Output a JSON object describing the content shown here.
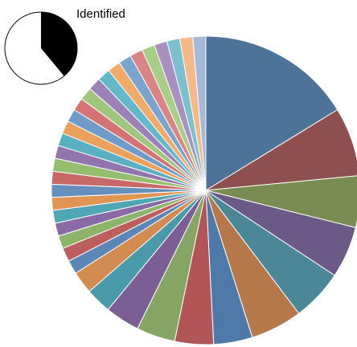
{
  "inset": {
    "label": "Identified",
    "fraction": 0.39,
    "fill_color": "#000000",
    "background_color": "#ffffff"
  },
  "chart_data": {
    "type": "pie",
    "start_angle_deg": 0,
    "direction": "clockwise",
    "slice_border": "#ffffff",
    "values": [
      18.0,
      8.0,
      6.0,
      6.0,
      6.0,
      6.0,
      4.5,
      4.5,
      4.5,
      4.0,
      3.0,
      2.6,
      1.6,
      1.6,
      1.5,
      1.5,
      1.5,
      1.5,
      1.5,
      1.5,
      1.5,
      1.5,
      1.5,
      1.5,
      1.5,
      1.5,
      1.5,
      1.5,
      1.5,
      1.5,
      1.5,
      1.5,
      1.5,
      1.5,
      1.5,
      1.5,
      1.5
    ],
    "colors": [
      "#4e7399",
      "#8e4f4f",
      "#7a8c52",
      "#6b5a86",
      "#4b8796",
      "#b5784a",
      "#4f79a8",
      "#b25557",
      "#86a464",
      "#7c5d94",
      "#4a9aa9",
      "#d28b51",
      "#5c86b6",
      "#bd5e5e",
      "#8db56a",
      "#8a6aa4",
      "#4fa6b5",
      "#e09652",
      "#6590be",
      "#c96868",
      "#95bd70",
      "#9275ad",
      "#5ab0c0",
      "#eba15c",
      "#709bc6",
      "#d47373",
      "#a0c67d",
      "#9c82b6",
      "#65b8c9",
      "#f0ab6a",
      "#7ba4cd",
      "#d98585",
      "#aacd88",
      "#a891c0",
      "#7cc0cf",
      "#f4b88a",
      "#a6b9d6",
      "#d9a3a3"
    ]
  }
}
